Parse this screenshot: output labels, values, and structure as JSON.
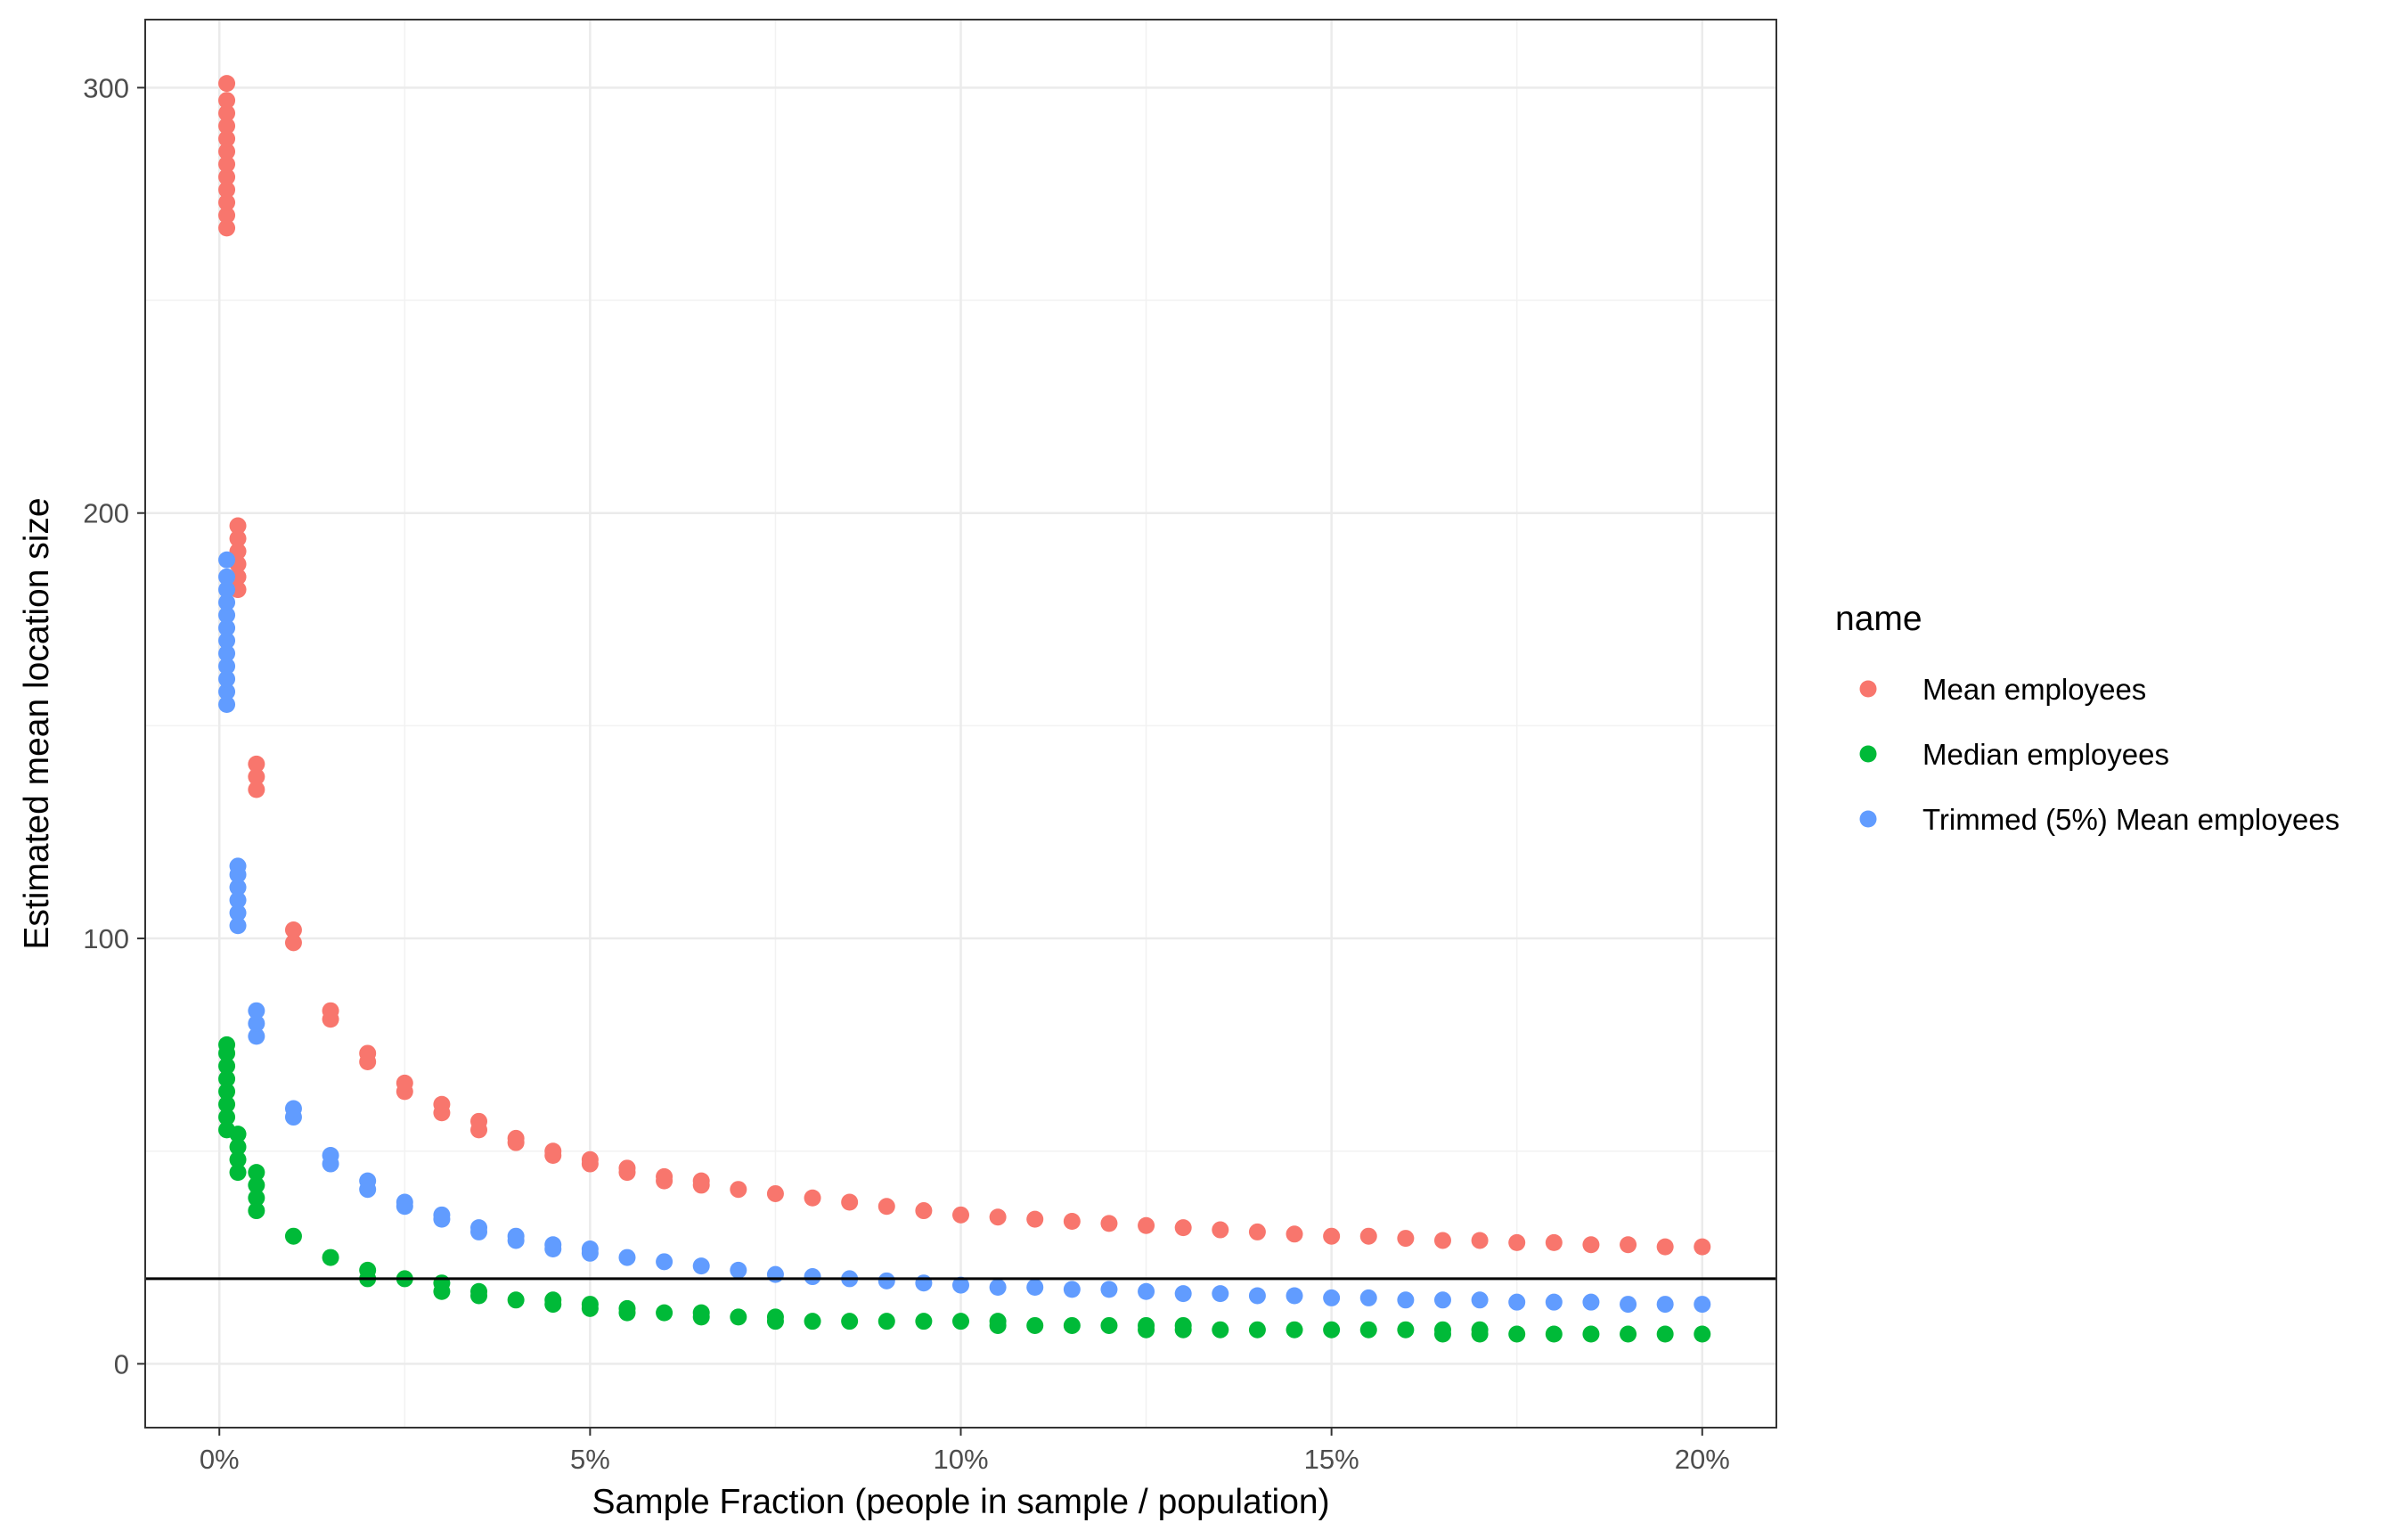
{
  "chart_data": {
    "type": "scatter",
    "xlabel": "Sample Fraction (people in sample / population)",
    "ylabel": "Estimated mean location size",
    "xlim": [
      -0.01,
      0.21
    ],
    "ylim": [
      -15,
      316
    ],
    "x_ticks": [
      0,
      0.05,
      0.1,
      0.15,
      0.2
    ],
    "x_tick_labels": [
      "0%",
      "5%",
      "10%",
      "15%",
      "20%"
    ],
    "y_ticks": [
      0,
      100,
      200,
      300
    ],
    "y_tick_labels": [
      "0",
      "100",
      "200",
      "300"
    ],
    "grid": true,
    "reference_line_y": 20,
    "legend": {
      "title": "name",
      "position": "right"
    },
    "series": [
      {
        "name": "Mean employees",
        "color": "#F8766D",
        "points": [
          [
            0.001,
            267
          ],
          [
            0.001,
            270
          ],
          [
            0.001,
            273
          ],
          [
            0.001,
            276
          ],
          [
            0.001,
            279
          ],
          [
            0.001,
            282
          ],
          [
            0.001,
            285
          ],
          [
            0.001,
            288
          ],
          [
            0.001,
            291
          ],
          [
            0.001,
            294
          ],
          [
            0.001,
            297
          ],
          [
            0.001,
            301
          ],
          [
            0.0025,
            182
          ],
          [
            0.0025,
            185
          ],
          [
            0.0025,
            188
          ],
          [
            0.0025,
            191
          ],
          [
            0.0025,
            194
          ],
          [
            0.0025,
            197
          ],
          [
            0.005,
            135
          ],
          [
            0.005,
            138
          ],
          [
            0.005,
            141
          ],
          [
            0.01,
            99
          ],
          [
            0.01,
            102
          ],
          [
            0.015,
            81
          ],
          [
            0.015,
            83
          ],
          [
            0.02,
            71
          ],
          [
            0.02,
            73
          ],
          [
            0.025,
            64
          ],
          [
            0.025,
            66
          ],
          [
            0.03,
            59
          ],
          [
            0.03,
            61
          ],
          [
            0.035,
            55
          ],
          [
            0.035,
            57
          ],
          [
            0.04,
            52
          ],
          [
            0.04,
            53
          ],
          [
            0.045,
            49
          ],
          [
            0.045,
            50
          ],
          [
            0.05,
            47
          ],
          [
            0.05,
            48
          ],
          [
            0.055,
            45
          ],
          [
            0.055,
            46
          ],
          [
            0.06,
            43
          ],
          [
            0.06,
            44
          ],
          [
            0.065,
            42
          ],
          [
            0.065,
            43
          ],
          [
            0.07,
            41
          ],
          [
            0.075,
            40
          ],
          [
            0.08,
            39
          ],
          [
            0.085,
            38
          ],
          [
            0.09,
            37
          ],
          [
            0.095,
            36
          ],
          [
            0.1,
            35
          ],
          [
            0.105,
            34.5
          ],
          [
            0.11,
            34
          ],
          [
            0.115,
            33.5
          ],
          [
            0.12,
            33
          ],
          [
            0.125,
            32.5
          ],
          [
            0.13,
            32
          ],
          [
            0.135,
            31.5
          ],
          [
            0.14,
            31
          ],
          [
            0.145,
            30.5
          ],
          [
            0.15,
            30
          ],
          [
            0.155,
            30
          ],
          [
            0.16,
            29.5
          ],
          [
            0.165,
            29
          ],
          [
            0.17,
            29
          ],
          [
            0.175,
            28.5
          ],
          [
            0.18,
            28.5
          ],
          [
            0.185,
            28
          ],
          [
            0.19,
            28
          ],
          [
            0.195,
            27.5
          ],
          [
            0.2,
            27.5
          ]
        ]
      },
      {
        "name": "Median employees",
        "color": "#00BA38",
        "points": [
          [
            0.001,
            55
          ],
          [
            0.001,
            58
          ],
          [
            0.001,
            61
          ],
          [
            0.001,
            64
          ],
          [
            0.001,
            67
          ],
          [
            0.001,
            70
          ],
          [
            0.001,
            73
          ],
          [
            0.001,
            75
          ],
          [
            0.0025,
            45
          ],
          [
            0.0025,
            48
          ],
          [
            0.0025,
            51
          ],
          [
            0.0025,
            54
          ],
          [
            0.005,
            36
          ],
          [
            0.005,
            39
          ],
          [
            0.005,
            42
          ],
          [
            0.005,
            45
          ],
          [
            0.01,
            30
          ],
          [
            0.015,
            25
          ],
          [
            0.02,
            20
          ],
          [
            0.02,
            22
          ],
          [
            0.025,
            20
          ],
          [
            0.03,
            17
          ],
          [
            0.03,
            19
          ],
          [
            0.035,
            16
          ],
          [
            0.035,
            17
          ],
          [
            0.04,
            15
          ],
          [
            0.045,
            14
          ],
          [
            0.045,
            15
          ],
          [
            0.05,
            13
          ],
          [
            0.05,
            14
          ],
          [
            0.055,
            12
          ],
          [
            0.055,
            13
          ],
          [
            0.06,
            12
          ],
          [
            0.065,
            11
          ],
          [
            0.065,
            12
          ],
          [
            0.07,
            11
          ],
          [
            0.075,
            10
          ],
          [
            0.075,
            11
          ],
          [
            0.08,
            10
          ],
          [
            0.085,
            10
          ],
          [
            0.09,
            10
          ],
          [
            0.095,
            10
          ],
          [
            0.1,
            10
          ],
          [
            0.105,
            9
          ],
          [
            0.105,
            10
          ],
          [
            0.11,
            9
          ],
          [
            0.115,
            9
          ],
          [
            0.12,
            9
          ],
          [
            0.125,
            8
          ],
          [
            0.125,
            9
          ],
          [
            0.13,
            8
          ],
          [
            0.13,
            9
          ],
          [
            0.135,
            8
          ],
          [
            0.14,
            8
          ],
          [
            0.145,
            8
          ],
          [
            0.15,
            8
          ],
          [
            0.155,
            8
          ],
          [
            0.16,
            8
          ],
          [
            0.165,
            7
          ],
          [
            0.165,
            8
          ],
          [
            0.17,
            7
          ],
          [
            0.17,
            8
          ],
          [
            0.175,
            7
          ],
          [
            0.18,
            7
          ],
          [
            0.185,
            7
          ],
          [
            0.19,
            7
          ],
          [
            0.195,
            7
          ],
          [
            0.2,
            7
          ]
        ]
      },
      {
        "name": "Trimmed (5%) Mean employees",
        "color": "#619CFF",
        "points": [
          [
            0.001,
            155
          ],
          [
            0.001,
            158
          ],
          [
            0.001,
            161
          ],
          [
            0.001,
            164
          ],
          [
            0.001,
            167
          ],
          [
            0.001,
            170
          ],
          [
            0.001,
            173
          ],
          [
            0.001,
            176
          ],
          [
            0.001,
            179
          ],
          [
            0.001,
            182
          ],
          [
            0.001,
            185
          ],
          [
            0.001,
            189
          ],
          [
            0.0025,
            103
          ],
          [
            0.0025,
            106
          ],
          [
            0.0025,
            109
          ],
          [
            0.0025,
            112
          ],
          [
            0.0025,
            115
          ],
          [
            0.0025,
            117
          ],
          [
            0.005,
            77
          ],
          [
            0.005,
            80
          ],
          [
            0.005,
            83
          ],
          [
            0.01,
            58
          ],
          [
            0.01,
            60
          ],
          [
            0.015,
            47
          ],
          [
            0.015,
            49
          ],
          [
            0.02,
            41
          ],
          [
            0.02,
            43
          ],
          [
            0.025,
            37
          ],
          [
            0.025,
            38
          ],
          [
            0.03,
            34
          ],
          [
            0.03,
            35
          ],
          [
            0.035,
            31
          ],
          [
            0.035,
            32
          ],
          [
            0.04,
            29
          ],
          [
            0.04,
            30
          ],
          [
            0.045,
            27
          ],
          [
            0.045,
            28
          ],
          [
            0.05,
            26
          ],
          [
            0.05,
            27
          ],
          [
            0.055,
            25
          ],
          [
            0.06,
            24
          ],
          [
            0.065,
            23
          ],
          [
            0.07,
            22
          ],
          [
            0.075,
            21
          ],
          [
            0.08,
            20.5
          ],
          [
            0.085,
            20
          ],
          [
            0.09,
            19.5
          ],
          [
            0.095,
            19
          ],
          [
            0.1,
            18.5
          ],
          [
            0.105,
            18
          ],
          [
            0.11,
            18
          ],
          [
            0.115,
            17.5
          ],
          [
            0.12,
            17.5
          ],
          [
            0.125,
            17
          ],
          [
            0.13,
            16.5
          ],
          [
            0.135,
            16.5
          ],
          [
            0.14,
            16
          ],
          [
            0.145,
            16
          ],
          [
            0.15,
            15.5
          ],
          [
            0.155,
            15.5
          ],
          [
            0.16,
            15
          ],
          [
            0.165,
            15
          ],
          [
            0.17,
            15
          ],
          [
            0.175,
            14.5
          ],
          [
            0.18,
            14.5
          ],
          [
            0.185,
            14.5
          ],
          [
            0.19,
            14
          ],
          [
            0.195,
            14
          ],
          [
            0.2,
            14
          ]
        ]
      }
    ]
  }
}
